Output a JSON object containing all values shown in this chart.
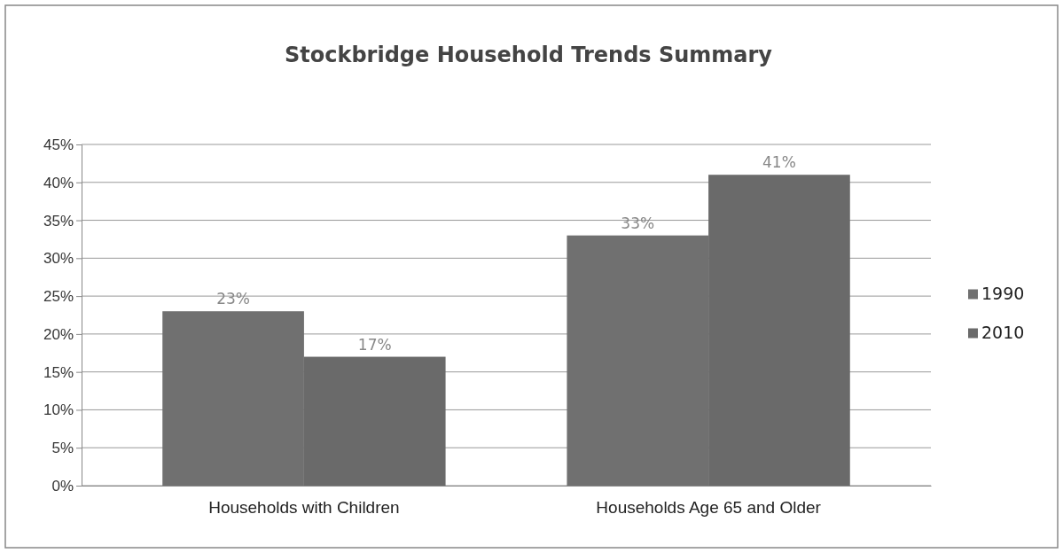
{
  "chart_data": {
    "type": "bar",
    "title": "Stockbridge Household Trends Summary",
    "categories": [
      "Households with Children",
      "Households Age 65 and Older"
    ],
    "series": [
      {
        "name": "1990",
        "color": "#707070",
        "values": [
          23,
          33
        ],
        "value_labels": [
          "23%",
          "33%"
        ]
      },
      {
        "name": "2010",
        "color": "#6a6a6a",
        "values": [
          17,
          41
        ],
        "value_labels": [
          "17%",
          "41%"
        ]
      }
    ],
    "ylim": [
      0,
      45
    ],
    "yticks": [
      {
        "value": 0,
        "label": "0%"
      },
      {
        "value": 5,
        "label": "5%"
      },
      {
        "value": 10,
        "label": "10%"
      },
      {
        "value": 15,
        "label": "15%"
      },
      {
        "value": 20,
        "label": "20%"
      },
      {
        "value": 25,
        "label": "25%"
      },
      {
        "value": 30,
        "label": "30%"
      },
      {
        "value": 35,
        "label": "35%"
      },
      {
        "value": 40,
        "label": "40%"
      },
      {
        "value": 45,
        "label": "45%"
      }
    ],
    "grid": "y",
    "legend": "right"
  }
}
